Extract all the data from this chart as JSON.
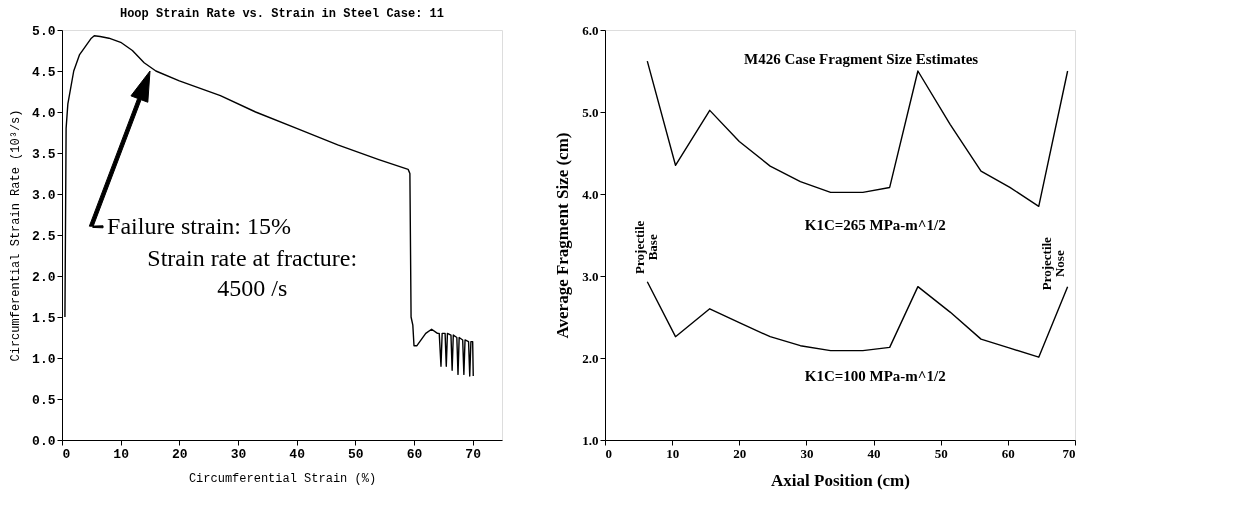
{
  "chart_data": [
    {
      "type": "line",
      "title": "Hoop Strain Rate vs. Strain in Steel Case: 11",
      "xlabel": "Circumferential Strain (%)",
      "ylabel": "Circumferential Strain Rate (10³/s)",
      "xlim": [
        0,
        75
      ],
      "ylim": [
        0,
        5
      ],
      "xticks": [
        0,
        10,
        20,
        30,
        40,
        50,
        60,
        70
      ],
      "yticks": [
        {
          "value": 0,
          "label": "0.0"
        },
        {
          "value": 0.5,
          "label": "0.5"
        },
        {
          "value": 1,
          "label": "1.0"
        },
        {
          "value": 1.5,
          "label": "1.5"
        },
        {
          "value": 2,
          "label": "2.0"
        },
        {
          "value": 2.5,
          "label": "2.5"
        },
        {
          "value": 3,
          "label": "3.0"
        },
        {
          "value": 3.5,
          "label": "3.5"
        },
        {
          "value": 4,
          "label": "4.0"
        },
        {
          "value": 4.5,
          "label": "4.5"
        },
        {
          "value": 5,
          "label": "5.0"
        }
      ],
      "x": [
        0.5,
        0.7,
        1.0,
        2.0,
        3.0,
        4.0,
        5.0,
        5.5,
        6.5,
        8.0,
        10.0,
        12.0,
        14.0,
        16.0,
        20.0,
        27.0,
        33.0,
        40.0,
        47.0,
        54.0,
        59.0,
        59.3,
        59.5,
        59.8,
        60.0,
        60.5,
        62.0,
        63.0,
        64.0,
        64.3,
        64.6,
        64.8,
        65.3,
        65.5,
        65.7,
        66.3,
        66.5,
        66.7,
        67.3,
        67.5,
        67.7,
        68.3,
        68.5,
        68.7,
        69.3,
        69.5,
        69.7,
        70.0,
        70.1
      ],
      "series": [
        {
          "color": "#000000",
          "values": [
            1.5,
            3.8,
            4.1,
            4.5,
            4.7,
            4.8,
            4.9,
            4.93,
            4.92,
            4.9,
            4.85,
            4.75,
            4.6,
            4.5,
            4.38,
            4.2,
            4.0,
            3.8,
            3.6,
            3.42,
            3.3,
            3.25,
            1.5,
            1.4,
            1.15,
            1.15,
            1.3,
            1.35,
            1.3,
            1.3,
            0.9,
            1.3,
            1.3,
            0.9,
            1.3,
            1.28,
            0.85,
            1.28,
            1.25,
            0.8,
            1.25,
            1.22,
            0.8,
            1.22,
            1.2,
            0.78,
            1.2,
            1.2,
            0.78
          ]
        }
      ],
      "annotations": [
        "Failure strain: 15%\nStrain rate at fracture:\n4500 /s"
      ],
      "grid": false,
      "legend": false,
      "marker": "none",
      "line_style": "solid"
    },
    {
      "type": "line",
      "xlabel": "Axial Position (cm)",
      "ylabel": "Average Fragment Size (cm)",
      "xlim": [
        0,
        70
      ],
      "ylim": [
        1,
        6
      ],
      "xticks": [
        0,
        10,
        20,
        30,
        40,
        50,
        60,
        70
      ],
      "yticks": [
        {
          "value": 1,
          "label": "1.0"
        },
        {
          "value": 2,
          "label": "2.0"
        },
        {
          "value": 3,
          "label": "3.0"
        },
        {
          "value": 4,
          "label": "4.0"
        },
        {
          "value": 5,
          "label": "5.0"
        },
        {
          "value": 6,
          "label": "6.0"
        }
      ],
      "x": [
        6.3,
        10.5,
        15.6,
        20.0,
        24.6,
        29.1,
        33.6,
        38.4,
        42.4,
        46.6,
        51.4,
        56.0,
        60.3,
        64.6,
        68.9
      ],
      "series": [
        {
          "color": "#000000",
          "values": [
            5.62,
            4.35,
            5.02,
            4.64,
            4.34,
            4.15,
            4.02,
            4.02,
            4.08,
            5.5,
            4.85,
            4.28,
            4.08,
            3.85,
            5.5
          ]
        },
        {
          "color": "#000000",
          "values": [
            2.93,
            2.26,
            2.6,
            2.43,
            2.26,
            2.15,
            2.09,
            2.09,
            2.13,
            2.87,
            2.56,
            2.23,
            2.12,
            2.01,
            2.87
          ]
        }
      ],
      "annotations": [
        "M426 Case Fragment Size Estimates",
        "K1C=265 MPa-m^1/2",
        "K1C=100 MPa-m^1/2",
        "Projectile\nBase",
        "Projectile\nNose"
      ],
      "grid": false,
      "legend": false,
      "marker": "none",
      "line_style": "solid"
    }
  ]
}
